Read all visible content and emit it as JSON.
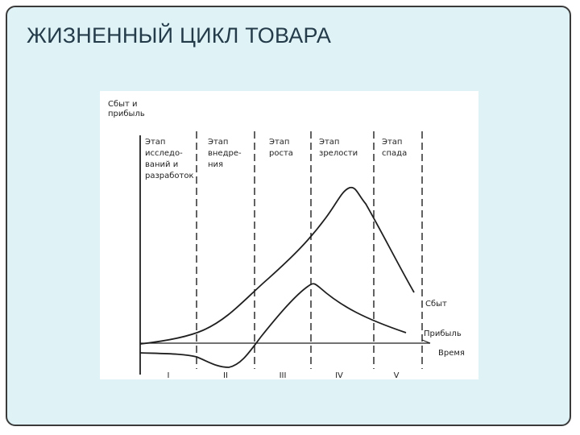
{
  "slide": {
    "title": "ЖИЗНЕННЫЙ ЦИКЛ ТОВАРА"
  },
  "diagram": {
    "y_axis_label": [
      "Сбыт и",
      "прибыль"
    ],
    "x_axis_label": "Время",
    "stages": [
      {
        "lines": [
          "Этап",
          "исследо-",
          "ваний и",
          "разработок"
        ],
        "numeral": "I"
      },
      {
        "lines": [
          "Этап",
          "внедре-",
          "ния"
        ],
        "numeral": "II"
      },
      {
        "lines": [
          "Этап",
          "роста"
        ],
        "numeral": "III"
      },
      {
        "lines": [
          "Этап",
          "зрелости"
        ],
        "numeral": "IV"
      },
      {
        "lines": [
          "Этап",
          "спада"
        ],
        "numeral": "V"
      }
    ],
    "curves": {
      "sales_label": "Сбыт",
      "profit_label": "Прибыль"
    },
    "colors": {
      "ink": "#1f1f1f",
      "slide_bg": "#dff3f7",
      "title": "#243b4a"
    }
  }
}
